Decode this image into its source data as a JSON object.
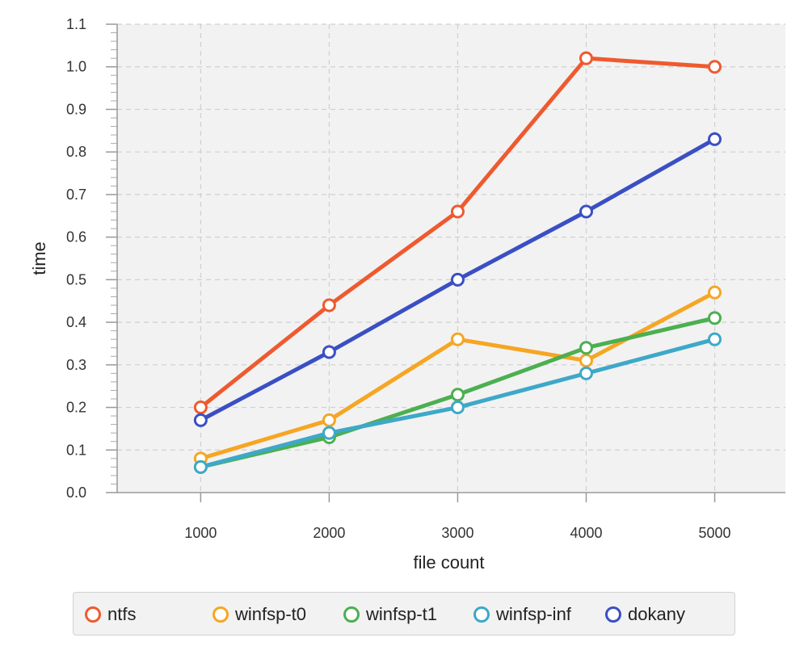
{
  "chart_data": {
    "type": "line",
    "x": [
      1000,
      2000,
      3000,
      4000,
      5000
    ],
    "series": [
      {
        "name": "ntfs",
        "color": "#ee5a2f",
        "values": [
          0.2,
          0.44,
          0.66,
          1.02,
          1.0
        ]
      },
      {
        "name": "winfsp-t0",
        "color": "#f6a623",
        "values": [
          0.08,
          0.17,
          0.36,
          0.31,
          0.47
        ]
      },
      {
        "name": "winfsp-t1",
        "color": "#4caf50",
        "values": [
          0.06,
          0.13,
          0.23,
          0.34,
          0.41
        ]
      },
      {
        "name": "winfsp-inf",
        "color": "#3ea8c8",
        "values": [
          0.06,
          0.14,
          0.2,
          0.28,
          0.36
        ]
      },
      {
        "name": "dokany",
        "color": "#3b4fc4",
        "values": [
          0.17,
          0.33,
          0.5,
          0.66,
          0.83
        ]
      }
    ],
    "xlabel": "file count",
    "ylabel": "time",
    "xlim": [
      350,
      5550
    ],
    "ylim": [
      0.0,
      1.1
    ],
    "xticks": [
      "1000",
      "2000",
      "3000",
      "4000",
      "5000"
    ],
    "yticks": [
      "0.0",
      "0.1",
      "0.2",
      "0.3",
      "0.4",
      "0.5",
      "0.6",
      "0.7",
      "0.8",
      "0.9",
      "1.0",
      "1.1"
    ],
    "grid": true,
    "legend_position": "bottom"
  }
}
